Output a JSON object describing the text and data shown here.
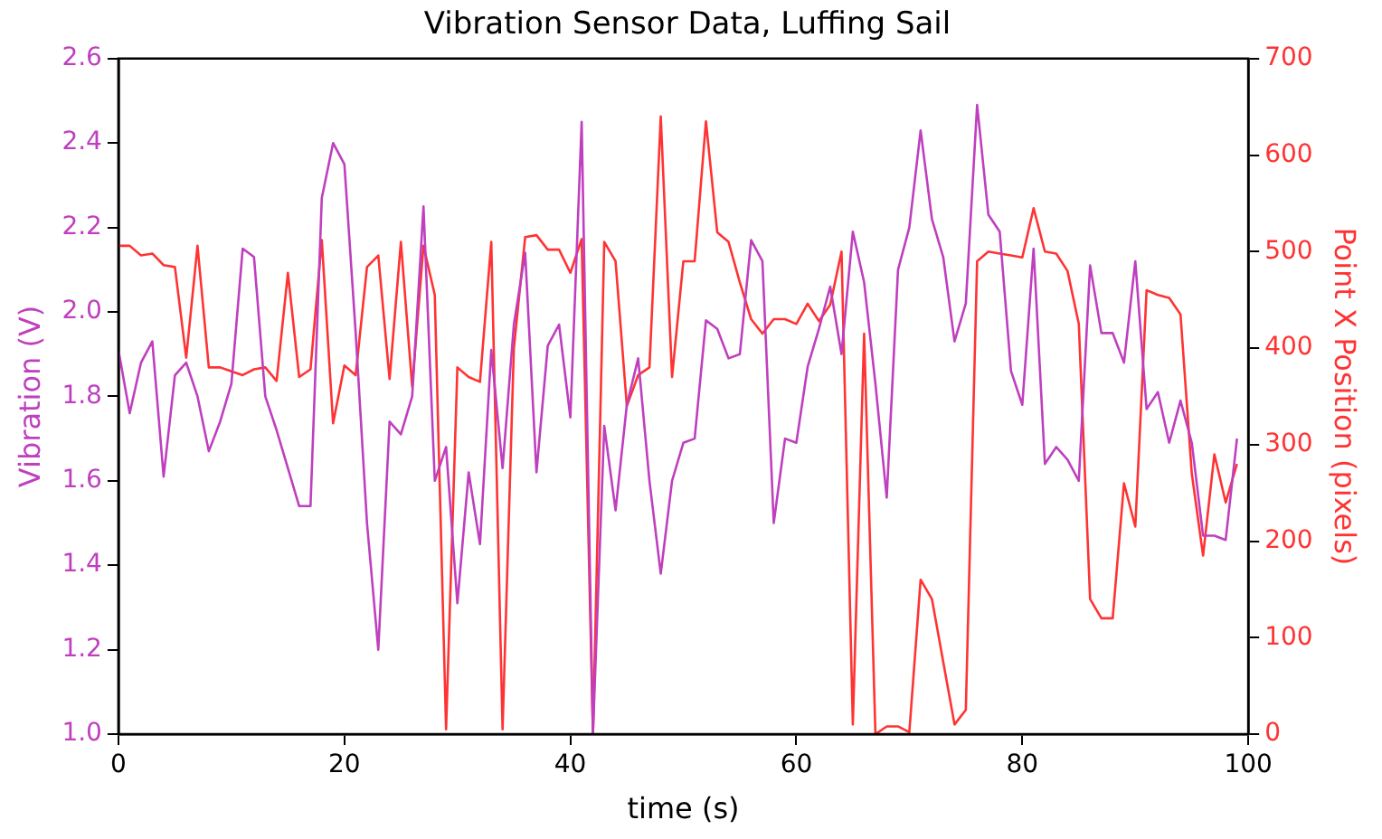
{
  "chart_data": {
    "type": "line",
    "title": "Vibration Sensor Data, Luffing Sail",
    "xlabel": "time (s)",
    "ylabel": "Vibration (V)",
    "y2label": "Point X Position (pixels)",
    "x": [
      0,
      1,
      2,
      3,
      4,
      5,
      6,
      7,
      8,
      9,
      10,
      11,
      12,
      13,
      14,
      15,
      16,
      17,
      18,
      19,
      20,
      21,
      22,
      23,
      24,
      25,
      26,
      27,
      28,
      29,
      30,
      31,
      32,
      33,
      34,
      35,
      36,
      37,
      38,
      39,
      40,
      41,
      42,
      43,
      44,
      45,
      46,
      47,
      48,
      49,
      50,
      51,
      52,
      53,
      54,
      55,
      56,
      57,
      58,
      59,
      60,
      61,
      62,
      63,
      64,
      65,
      66,
      67,
      68,
      69,
      70,
      71,
      72,
      73,
      74,
      75,
      76,
      77,
      78,
      79,
      80,
      81,
      82,
      83,
      84,
      85,
      86,
      87,
      88,
      89,
      90,
      91,
      92,
      93,
      94,
      95,
      96,
      97,
      98,
      99
    ],
    "xlim": [
      0,
      100
    ],
    "xticks": [
      0,
      20,
      40,
      60,
      80,
      100
    ],
    "ylim": [
      1.0,
      2.6
    ],
    "yticks": [
      {
        "value": 1.0,
        "label": "1.0"
      },
      {
        "value": 1.2,
        "label": "1.2"
      },
      {
        "value": 1.4,
        "label": "1.4"
      },
      {
        "value": 1.6,
        "label": "1.6"
      },
      {
        "value": 1.8,
        "label": "1.8"
      },
      {
        "value": 2.0,
        "label": "2.0"
      },
      {
        "value": 2.2,
        "label": "2.2"
      },
      {
        "value": 2.4,
        "label": "2.4"
      },
      {
        "value": 2.6,
        "label": "2.6"
      }
    ],
    "y2lim": [
      0,
      700
    ],
    "y2ticks": [
      0,
      100,
      200,
      300,
      400,
      500,
      600,
      700
    ],
    "grid": false,
    "legend": false,
    "marker": "none",
    "line_style": "solid",
    "series": [
      {
        "color": "#bf3fbf",
        "values": [
          1.91,
          1.76,
          1.88,
          1.93,
          1.61,
          1.85,
          1.88,
          1.8,
          1.67,
          1.74,
          1.83,
          2.15,
          2.13,
          1.8,
          1.72,
          1.63,
          1.54,
          1.54,
          2.27,
          2.4,
          2.35,
          1.95,
          1.5,
          1.2,
          1.74,
          1.71,
          1.8,
          2.25,
          1.6,
          1.68,
          1.31,
          1.62,
          1.45,
          1.91,
          1.63,
          1.97,
          2.14,
          1.62,
          1.92,
          1.97,
          1.75,
          2.45,
          1.0,
          1.73,
          1.53,
          1.78,
          1.89,
          1.6,
          1.38,
          1.6,
          1.69,
          1.7,
          1.98,
          1.96,
          1.89,
          1.9,
          2.17,
          2.12,
          1.5,
          1.7,
          1.69,
          1.87,
          1.96,
          2.06,
          1.9,
          2.19,
          2.07,
          1.83,
          1.56,
          2.1,
          2.2,
          2.43,
          2.22,
          2.13,
          1.93,
          2.02,
          2.49,
          2.23,
          2.19,
          1.86,
          1.78,
          2.15,
          1.64,
          1.68,
          1.65,
          1.6,
          2.11,
          1.95,
          1.95,
          1.88,
          2.12,
          1.77,
          1.81,
          1.69,
          1.79,
          1.69,
          1.47,
          1.47,
          1.46,
          1.7
        ]
      },
      {
        "color": "#ff3333",
        "axis": "y2",
        "values": [
          506,
          506,
          496,
          498,
          486,
          484,
          390,
          506,
          380,
          380,
          376,
          372,
          378,
          380,
          366,
          478,
          370,
          378,
          512,
          322,
          382,
          372,
          484,
          496,
          368,
          510,
          360,
          506,
          455,
          5,
          380,
          370,
          365,
          510,
          5,
          400,
          515,
          517,
          502,
          502,
          478,
          513,
          0,
          510,
          490,
          340,
          372,
          380,
          640,
          370,
          490,
          490,
          635,
          520,
          510,
          468,
          430,
          415,
          430,
          430,
          425,
          446,
          428,
          445,
          500,
          10,
          415,
          0,
          8,
          8,
          2,
          160,
          140,
          75,
          10,
          25,
          490,
          500,
          498,
          496,
          494,
          545,
          500,
          498,
          480,
          425,
          140,
          120,
          120,
          260,
          215,
          460,
          455,
          452,
          435,
          270,
          185,
          290,
          240,
          280
        ]
      }
    ]
  }
}
